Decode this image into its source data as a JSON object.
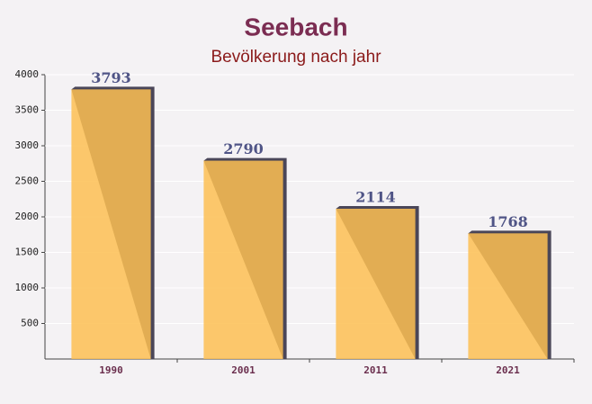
{
  "chart_data": {
    "type": "bar",
    "title": "Seebach",
    "subtitle": "Bevölkerung nach jahr",
    "categories": [
      "1990",
      "2001",
      "2011",
      "2021"
    ],
    "values": [
      3793,
      2790,
      2114,
      1768
    ],
    "color": "#fdbf52",
    "ylim": [
      0,
      4000
    ],
    "yticks": [
      500,
      1000,
      1500,
      2000,
      2500,
      3000,
      3500,
      4000
    ],
    "grid": true
  }
}
